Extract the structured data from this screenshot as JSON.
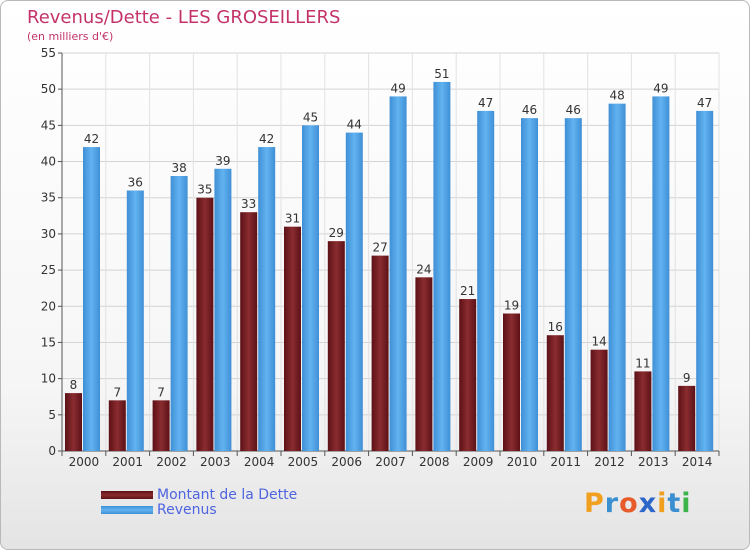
{
  "chart_data": {
    "type": "bar",
    "title": "Revenus/Dette - LES GROSEILLERS",
    "subtitle": "(en milliers d'€)",
    "categories": [
      "2000",
      "2001",
      "2002",
      "2003",
      "2004",
      "2005",
      "2006",
      "2007",
      "2008",
      "2009",
      "2010",
      "2011",
      "2012",
      "2013",
      "2014"
    ],
    "series": [
      {
        "name": "Montant de la Dette",
        "color": "#7a2126",
        "values": [
          8,
          7,
          7,
          35,
          33,
          31,
          29,
          27,
          24,
          21,
          19,
          16,
          14,
          11,
          9
        ]
      },
      {
        "name": "Revenus",
        "color": "#4c9fe3",
        "values": [
          42,
          36,
          38,
          39,
          42,
          45,
          44,
          49,
          51,
          47,
          46,
          46,
          48,
          49,
          47
        ]
      }
    ],
    "yticks": [
      0,
      5,
      10,
      15,
      20,
      25,
      30,
      35,
      40,
      45,
      50,
      55
    ],
    "ylim": [
      0,
      55
    ],
    "grid": true,
    "legend": "bottom-left"
  },
  "logo": {
    "text": "Proxiti",
    "letters": [
      "P",
      "r",
      "o",
      "x",
      "i",
      "t",
      "i"
    ],
    "colors": [
      "#f0a01e",
      "#3a8fd0",
      "#e85b2a",
      "#2c66c8",
      "#f0a01e",
      "#3a8fd0",
      "#3bb54a"
    ]
  }
}
